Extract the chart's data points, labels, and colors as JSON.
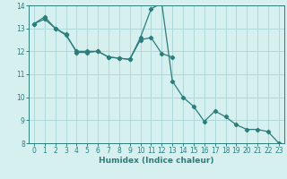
{
  "xlabel": "Humidex (Indice chaleur)",
  "bg_color": "#d6f0f0",
  "grid_color": "#b0d8d8",
  "line_color": "#2d7d7d",
  "xlim": [
    -0.5,
    23.5
  ],
  "ylim": [
    8,
    14
  ],
  "yticks": [
    8,
    9,
    10,
    11,
    12,
    13,
    14
  ],
  "xticks": [
    0,
    1,
    2,
    3,
    4,
    5,
    6,
    7,
    8,
    9,
    10,
    11,
    12,
    13,
    14,
    15,
    16,
    17,
    18,
    19,
    20,
    21,
    22,
    23
  ],
  "line1_x": [
    0,
    1,
    2,
    3,
    4,
    5,
    6,
    7,
    8,
    9,
    10,
    11,
    12,
    13,
    14,
    15,
    16,
    17,
    18,
    19,
    20,
    21,
    22,
    23
  ],
  "line1_y": [
    13.2,
    13.5,
    13.0,
    12.75,
    11.95,
    11.95,
    12.0,
    11.75,
    11.7,
    11.65,
    12.6,
    13.85,
    14.1,
    10.7,
    10.0,
    9.6,
    8.95,
    9.4,
    9.15,
    8.8,
    8.6,
    8.6,
    8.5,
    8.0
  ],
  "line2_x": [
    0,
    1,
    2,
    3,
    4,
    5,
    6,
    7,
    8,
    9,
    10,
    11,
    12,
    13
  ],
  "line2_y": [
    13.2,
    13.4,
    13.0,
    12.7,
    12.0,
    12.0,
    12.0,
    11.75,
    11.7,
    11.65,
    12.5,
    12.6,
    11.9,
    11.75
  ]
}
